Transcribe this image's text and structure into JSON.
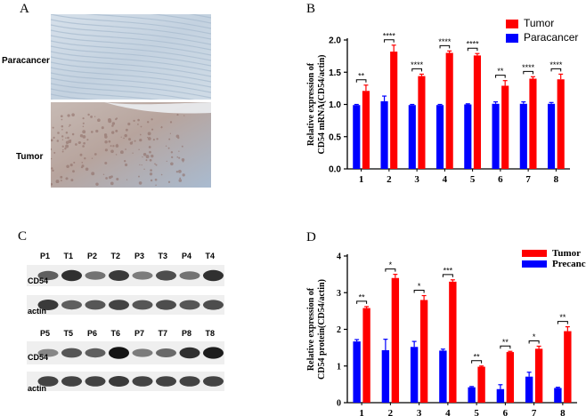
{
  "panels": {
    "A": {
      "letter": "A",
      "labels": [
        "Paracancer",
        "Tumor"
      ],
      "colors": {
        "paracancer_tint": "#c9d6e3",
        "tumor_tint": "#b9a9a3"
      }
    },
    "C": {
      "letter": "C",
      "row1_lanes": [
        "P1",
        "T1",
        "P2",
        "T2",
        "P3",
        "T3",
        "P4",
        "T4"
      ],
      "row2_lanes": [
        "P5",
        "T5",
        "P6",
        "T6",
        "P7",
        "T7",
        "P8",
        "T8"
      ],
      "row_labels": {
        "target": "CD54",
        "control": "actin"
      },
      "band_intensity": {
        "row1_cd54": [
          0.55,
          0.8,
          0.45,
          0.75,
          0.4,
          0.65,
          0.45,
          0.8
        ],
        "row1_actin": [
          0.75,
          0.55,
          0.6,
          0.7,
          0.6,
          0.65,
          0.6,
          0.65
        ],
        "row2_cd54": [
          0.35,
          0.6,
          0.55,
          0.95,
          0.4,
          0.5,
          0.8,
          0.9
        ],
        "row2_actin": [
          0.7,
          0.7,
          0.7,
          0.75,
          0.7,
          0.7,
          0.7,
          0.7
        ]
      }
    }
  },
  "chart_data": [
    {
      "panel": "B",
      "type": "bar",
      "categories": [
        "1",
        "2",
        "3",
        "4",
        "5",
        "6",
        "7",
        "8"
      ],
      "ylabel_line1": "Relative expression of",
      "ylabel_line2": "CD54 mRNA(CD54/actin)",
      "ylim": [
        0,
        2.0
      ],
      "yticks": [
        "0.0",
        "0.5",
        "1.0",
        "1.5",
        "2.0"
      ],
      "legend_position": "top-right",
      "series": [
        {
          "name": "Tumor",
          "color": "#ff0000",
          "values": [
            1.21,
            1.82,
            1.44,
            1.8,
            1.76,
            1.29,
            1.4,
            1.39
          ],
          "errors": [
            0.09,
            0.1,
            0.03,
            0.03,
            0.03,
            0.08,
            0.03,
            0.08
          ]
        },
        {
          "name": "Paracancer",
          "color": "#0000ff",
          "values": [
            0.99,
            1.05,
            0.99,
            0.99,
            1.0,
            1.01,
            1.01,
            1.01
          ],
          "errors": [
            0.01,
            0.08,
            0.01,
            0.01,
            0.01,
            0.03,
            0.03,
            0.02
          ]
        }
      ],
      "significance": [
        "**",
        "****",
        "****",
        "****",
        "****",
        "**",
        "****",
        "****"
      ]
    },
    {
      "panel": "D",
      "type": "bar",
      "categories": [
        "1",
        "2",
        "3",
        "4",
        "5",
        "6",
        "7",
        "8"
      ],
      "ylabel_line1": "Relative expression of",
      "ylabel_line2": "CD54 protein(CD54/actin)",
      "ylim": [
        0,
        4
      ],
      "yticks": [
        "0",
        "1",
        "2",
        "3",
        "4"
      ],
      "legend_position": "top-right",
      "series": [
        {
          "name": "Tumor",
          "color": "#ff0000",
          "values": [
            2.58,
            3.4,
            2.8,
            3.3,
            0.98,
            1.38,
            1.47,
            1.95
          ],
          "errors": [
            0.04,
            0.1,
            0.12,
            0.05,
            0.02,
            0.02,
            0.07,
            0.12
          ]
        },
        {
          "name": "Precancer",
          "color": "#0000ff",
          "values": [
            1.67,
            1.43,
            1.52,
            1.42,
            0.42,
            0.37,
            0.71,
            0.4
          ],
          "errors": [
            0.05,
            0.3,
            0.15,
            0.04,
            0.02,
            0.12,
            0.12,
            0.02
          ]
        }
      ],
      "significance": [
        "**",
        "*",
        "*",
        "***",
        "**",
        "**",
        "*",
        "**"
      ]
    }
  ]
}
